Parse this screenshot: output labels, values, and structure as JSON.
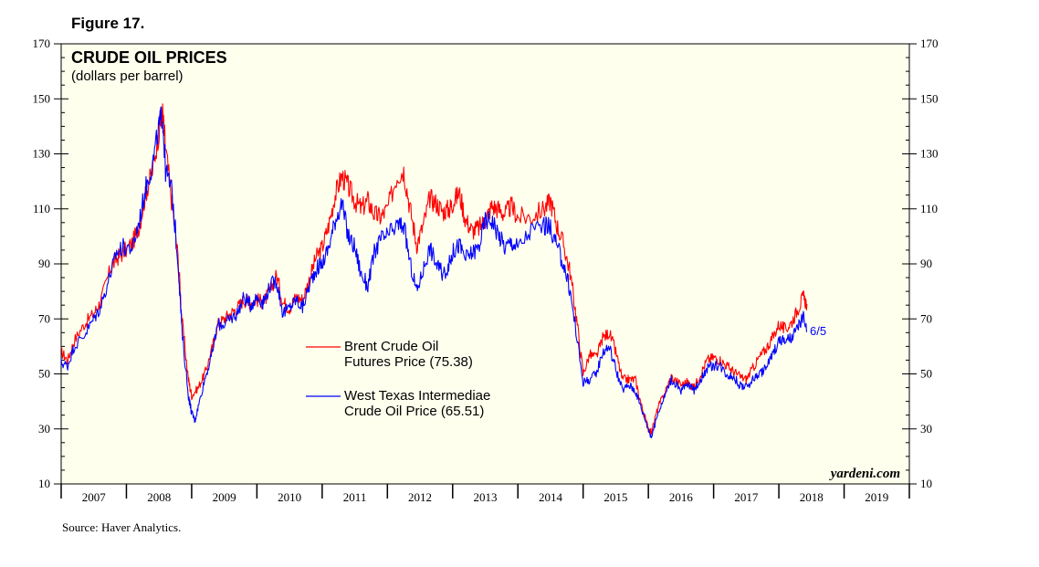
{
  "figure_label": "Figure 17.",
  "source": "Source: Haver Analytics.",
  "colors": {
    "plot_bg": "#ffffee",
    "brent": "#ff0000",
    "wti": "#0000ff"
  },
  "chart_data": {
    "type": "line",
    "title": "CRUDE OIL PRICES",
    "subtitle": "(dollars per barrel)",
    "watermark": "yardeni.com",
    "xlabel": "",
    "ylabel": "",
    "ylim": [
      10,
      170
    ],
    "xlim": [
      2007.0,
      2020.0
    ],
    "y_ticks": [
      10,
      30,
      50,
      70,
      90,
      110,
      130,
      150,
      170
    ],
    "x_tick_labels": [
      "2007",
      "2008",
      "2009",
      "2010",
      "2011",
      "2012",
      "2013",
      "2014",
      "2015",
      "2016",
      "2017",
      "2018",
      "2019"
    ],
    "annotation": "6/5",
    "series": [
      {
        "name": "Brent Crude Oil Futures Price (75.38)",
        "legend_line1": "Brent Crude Oil",
        "legend_line2": "Futures Price (75.38)",
        "color": "#ff0000",
        "points": [
          [
            2007.0,
            58
          ],
          [
            2007.1,
            55
          ],
          [
            2007.2,
            62
          ],
          [
            2007.35,
            68
          ],
          [
            2007.5,
            72
          ],
          [
            2007.6,
            76
          ],
          [
            2007.75,
            88
          ],
          [
            2007.85,
            92
          ],
          [
            2007.95,
            94
          ],
          [
            2008.1,
            98
          ],
          [
            2008.2,
            104
          ],
          [
            2008.3,
            116
          ],
          [
            2008.4,
            124
          ],
          [
            2008.5,
            138
          ],
          [
            2008.55,
            146
          ],
          [
            2008.6,
            132
          ],
          [
            2008.7,
            112
          ],
          [
            2008.8,
            90
          ],
          [
            2008.85,
            70
          ],
          [
            2008.95,
            48
          ],
          [
            2009.0,
            42
          ],
          [
            2009.1,
            45
          ],
          [
            2009.2,
            50
          ],
          [
            2009.3,
            58
          ],
          [
            2009.4,
            68
          ],
          [
            2009.5,
            70
          ],
          [
            2009.6,
            72
          ],
          [
            2009.7,
            74
          ],
          [
            2009.8,
            77
          ],
          [
            2009.9,
            76
          ],
          [
            2010.0,
            77
          ],
          [
            2010.1,
            76
          ],
          [
            2010.2,
            80
          ],
          [
            2010.3,
            86
          ],
          [
            2010.4,
            76
          ],
          [
            2010.5,
            74
          ],
          [
            2010.6,
            78
          ],
          [
            2010.7,
            77
          ],
          [
            2010.8,
            84
          ],
          [
            2010.9,
            92
          ],
          [
            2011.0,
            96
          ],
          [
            2011.1,
            104
          ],
          [
            2011.2,
            115
          ],
          [
            2011.3,
            122
          ],
          [
            2011.4,
            118
          ],
          [
            2011.5,
            113
          ],
          [
            2011.6,
            110
          ],
          [
            2011.7,
            113
          ],
          [
            2011.8,
            108
          ],
          [
            2011.9,
            107
          ],
          [
            2012.0,
            110
          ],
          [
            2012.15,
            122
          ],
          [
            2012.25,
            124
          ],
          [
            2012.35,
            110
          ],
          [
            2012.45,
            97
          ],
          [
            2012.55,
            104
          ],
          [
            2012.65,
            114
          ],
          [
            2012.75,
            112
          ],
          [
            2012.85,
            109
          ],
          [
            2012.95,
            110
          ],
          [
            2013.0,
            112
          ],
          [
            2013.1,
            116
          ],
          [
            2013.2,
            106
          ],
          [
            2013.3,
            102
          ],
          [
            2013.4,
            103
          ],
          [
            2013.5,
            106
          ],
          [
            2013.6,
            111
          ],
          [
            2013.7,
            110
          ],
          [
            2013.8,
            108
          ],
          [
            2013.9,
            111
          ],
          [
            2014.0,
            107
          ],
          [
            2014.2,
            107
          ],
          [
            2014.4,
            110
          ],
          [
            2014.5,
            113
          ],
          [
            2014.6,
            104
          ],
          [
            2014.7,
            97
          ],
          [
            2014.8,
            87
          ],
          [
            2014.9,
            70
          ],
          [
            2015.0,
            50
          ],
          [
            2015.1,
            57
          ],
          [
            2015.2,
            56
          ],
          [
            2015.3,
            63
          ],
          [
            2015.4,
            65
          ],
          [
            2015.5,
            58
          ],
          [
            2015.6,
            48
          ],
          [
            2015.7,
            48
          ],
          [
            2015.8,
            48
          ],
          [
            2015.9,
            38
          ],
          [
            2016.0,
            30
          ],
          [
            2016.05,
            29
          ],
          [
            2016.15,
            38
          ],
          [
            2016.25,
            43
          ],
          [
            2016.35,
            49
          ],
          [
            2016.5,
            46
          ],
          [
            2016.6,
            47
          ],
          [
            2016.7,
            45
          ],
          [
            2016.8,
            50
          ],
          [
            2016.9,
            55
          ],
          [
            2017.0,
            56
          ],
          [
            2017.1,
            55
          ],
          [
            2017.2,
            53
          ],
          [
            2017.3,
            51
          ],
          [
            2017.4,
            49
          ],
          [
            2017.5,
            48
          ],
          [
            2017.6,
            52
          ],
          [
            2017.7,
            56
          ],
          [
            2017.8,
            59
          ],
          [
            2017.9,
            63
          ],
          [
            2018.0,
            68
          ],
          [
            2018.1,
            66
          ],
          [
            2018.2,
            69
          ],
          [
            2018.3,
            74
          ],
          [
            2018.37,
            78
          ],
          [
            2018.43,
            75.38
          ]
        ]
      },
      {
        "name": "West Texas Intermediae Crude Oil Price (65.51)",
        "legend_line1": "West Texas Intermediae",
        "legend_line2": "Crude Oil Price (65.51)",
        "color": "#0000ff",
        "points": [
          [
            2007.0,
            54
          ],
          [
            2007.1,
            53
          ],
          [
            2007.2,
            60
          ],
          [
            2007.35,
            64
          ],
          [
            2007.5,
            70
          ],
          [
            2007.6,
            74
          ],
          [
            2007.75,
            86
          ],
          [
            2007.85,
            94
          ],
          [
            2007.95,
            96
          ],
          [
            2008.1,
            96
          ],
          [
            2008.2,
            106
          ],
          [
            2008.3,
            118
          ],
          [
            2008.4,
            126
          ],
          [
            2008.5,
            140
          ],
          [
            2008.55,
            145
          ],
          [
            2008.6,
            124
          ],
          [
            2008.7,
            116
          ],
          [
            2008.8,
            88
          ],
          [
            2008.85,
            66
          ],
          [
            2008.95,
            42
          ],
          [
            2009.0,
            36
          ],
          [
            2009.05,
            33
          ],
          [
            2009.1,
            38
          ],
          [
            2009.2,
            48
          ],
          [
            2009.3,
            56
          ],
          [
            2009.4,
            68
          ],
          [
            2009.5,
            68
          ],
          [
            2009.6,
            70
          ],
          [
            2009.7,
            72
          ],
          [
            2009.8,
            78
          ],
          [
            2009.9,
            75
          ],
          [
            2010.0,
            78
          ],
          [
            2010.1,
            76
          ],
          [
            2010.2,
            82
          ],
          [
            2010.3,
            84
          ],
          [
            2010.4,
            72
          ],
          [
            2010.5,
            74
          ],
          [
            2010.6,
            77
          ],
          [
            2010.7,
            74
          ],
          [
            2010.8,
            82
          ],
          [
            2010.9,
            88
          ],
          [
            2011.0,
            90
          ],
          [
            2011.1,
            96
          ],
          [
            2011.2,
            106
          ],
          [
            2011.3,
            112
          ],
          [
            2011.4,
            100
          ],
          [
            2011.5,
            96
          ],
          [
            2011.6,
            86
          ],
          [
            2011.7,
            82
          ],
          [
            2011.8,
            94
          ],
          [
            2011.9,
            99
          ],
          [
            2012.0,
            100
          ],
          [
            2012.15,
            104
          ],
          [
            2012.25,
            104
          ],
          [
            2012.35,
            90
          ],
          [
            2012.45,
            80
          ],
          [
            2012.55,
            88
          ],
          [
            2012.65,
            96
          ],
          [
            2012.75,
            90
          ],
          [
            2012.85,
            86
          ],
          [
            2012.95,
            90
          ],
          [
            2013.0,
            94
          ],
          [
            2013.1,
            97
          ],
          [
            2013.2,
            92
          ],
          [
            2013.3,
            94
          ],
          [
            2013.4,
            96
          ],
          [
            2013.5,
            106
          ],
          [
            2013.6,
            106
          ],
          [
            2013.7,
            101
          ],
          [
            2013.8,
            96
          ],
          [
            2013.9,
            98
          ],
          [
            2014.0,
            96
          ],
          [
            2014.2,
            102
          ],
          [
            2014.4,
            104
          ],
          [
            2014.5,
            103
          ],
          [
            2014.6,
            96
          ],
          [
            2014.7,
            90
          ],
          [
            2014.8,
            80
          ],
          [
            2014.9,
            64
          ],
          [
            2015.0,
            47
          ],
          [
            2015.1,
            48
          ],
          [
            2015.2,
            50
          ],
          [
            2015.3,
            58
          ],
          [
            2015.4,
            60
          ],
          [
            2015.5,
            52
          ],
          [
            2015.6,
            44
          ],
          [
            2015.7,
            46
          ],
          [
            2015.8,
            44
          ],
          [
            2015.9,
            37
          ],
          [
            2016.0,
            30
          ],
          [
            2016.05,
            27
          ],
          [
            2016.15,
            36
          ],
          [
            2016.25,
            42
          ],
          [
            2016.35,
            48
          ],
          [
            2016.5,
            44
          ],
          [
            2016.6,
            46
          ],
          [
            2016.7,
            44
          ],
          [
            2016.8,
            48
          ],
          [
            2016.9,
            52
          ],
          [
            2017.0,
            53
          ],
          [
            2017.1,
            53
          ],
          [
            2017.2,
            50
          ],
          [
            2017.3,
            49
          ],
          [
            2017.4,
            46
          ],
          [
            2017.5,
            45
          ],
          [
            2017.6,
            48
          ],
          [
            2017.7,
            50
          ],
          [
            2017.8,
            52
          ],
          [
            2017.9,
            57
          ],
          [
            2018.0,
            62
          ],
          [
            2018.1,
            62
          ],
          [
            2018.2,
            63
          ],
          [
            2018.3,
            67
          ],
          [
            2018.37,
            71
          ],
          [
            2018.43,
            65.51
          ]
        ]
      }
    ]
  }
}
